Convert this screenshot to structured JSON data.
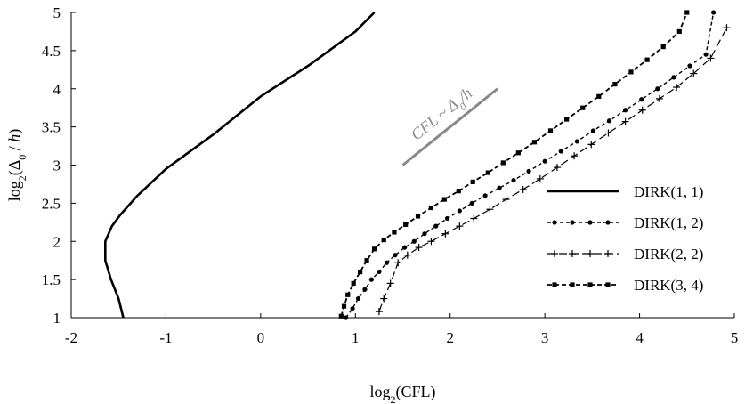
{
  "chart_data": {
    "type": "line",
    "xlabel": "log2(CFL)",
    "ylabel": "log2(Δ0 / h)",
    "xlim": [
      -2,
      5
    ],
    "ylim": [
      1,
      5
    ],
    "xticks": [
      "-2",
      "-1",
      "0",
      "1",
      "2",
      "3",
      "4",
      "5"
    ],
    "yticks": [
      "1",
      "1.5",
      "2",
      "2.5",
      "3",
      "3.5",
      "4",
      "4.5",
      "5"
    ],
    "legend_position": "right",
    "annotation": {
      "text": "CFL ~ Δ0/h",
      "line": [
        [
          1.5,
          3.0
        ],
        [
          2.5,
          4.0
        ]
      ],
      "color": "#888888"
    },
    "series": [
      {
        "name": "DIRK(1, 1)",
        "style": "solid",
        "x": [
          -1.45,
          -1.5,
          -1.58,
          -1.64,
          -1.64,
          -1.57,
          -1.48,
          -1.3,
          -1.0,
          -0.5,
          0.0,
          0.5,
          1.0,
          1.2
        ],
        "y": [
          1.0,
          1.25,
          1.5,
          1.75,
          2.0,
          2.2,
          2.35,
          2.6,
          2.95,
          3.4,
          3.9,
          4.3,
          4.75,
          5.0
        ]
      },
      {
        "name": "DIRK(1, 2)",
        "style": "dotted-circle",
        "x": [
          0.9,
          0.97,
          1.03,
          1.1,
          1.17,
          1.25,
          1.33,
          1.42,
          1.52,
          1.62,
          1.73,
          1.85,
          1.97,
          2.1,
          2.23,
          2.37,
          2.52,
          2.67,
          2.83,
          3.0,
          3.17,
          3.34,
          3.51,
          3.68,
          3.85,
          4.02,
          4.19,
          4.36,
          4.53,
          4.7,
          4.78
        ],
        "y": [
          1.0,
          1.12,
          1.25,
          1.37,
          1.5,
          1.6,
          1.72,
          1.82,
          1.92,
          2.0,
          2.1,
          2.2,
          2.3,
          2.4,
          2.5,
          2.6,
          2.7,
          2.8,
          2.92,
          3.05,
          3.18,
          3.31,
          3.45,
          3.58,
          3.72,
          3.86,
          4.0,
          4.15,
          4.3,
          4.45,
          5.0
        ]
      },
      {
        "name": "DIRK(2, 2)",
        "style": "dash-plus",
        "x": [
          1.25,
          1.3,
          1.37,
          1.45,
          1.55,
          1.67,
          1.8,
          1.95,
          2.1,
          2.25,
          2.42,
          2.59,
          2.77,
          2.95,
          3.13,
          3.31,
          3.49,
          3.67,
          3.85,
          4.03,
          4.21,
          4.39,
          4.57,
          4.75,
          4.92
        ],
        "y": [
          1.08,
          1.25,
          1.45,
          1.72,
          1.82,
          1.92,
          2.0,
          2.1,
          2.2,
          2.3,
          2.42,
          2.55,
          2.68,
          2.82,
          2.97,
          3.12,
          3.27,
          3.42,
          3.57,
          3.72,
          3.87,
          4.02,
          4.2,
          4.4,
          4.8
        ]
      },
      {
        "name": "DIRK(3, 4)",
        "style": "dash-square",
        "x": [
          0.85,
          0.88,
          0.92,
          0.98,
          1.05,
          1.12,
          1.2,
          1.3,
          1.41,
          1.53,
          1.66,
          1.8,
          1.94,
          2.09,
          2.24,
          2.4,
          2.56,
          2.72,
          2.89,
          3.06,
          3.23,
          3.4,
          3.57,
          3.74,
          3.91,
          4.08,
          4.25,
          4.42,
          4.5
        ],
        "y": [
          1.02,
          1.15,
          1.3,
          1.45,
          1.6,
          1.75,
          1.9,
          2.02,
          2.12,
          2.22,
          2.33,
          2.44,
          2.55,
          2.66,
          2.78,
          2.9,
          3.03,
          3.16,
          3.3,
          3.45,
          3.6,
          3.75,
          3.9,
          4.06,
          4.22,
          4.38,
          4.55,
          4.75,
          5.0
        ]
      }
    ]
  }
}
